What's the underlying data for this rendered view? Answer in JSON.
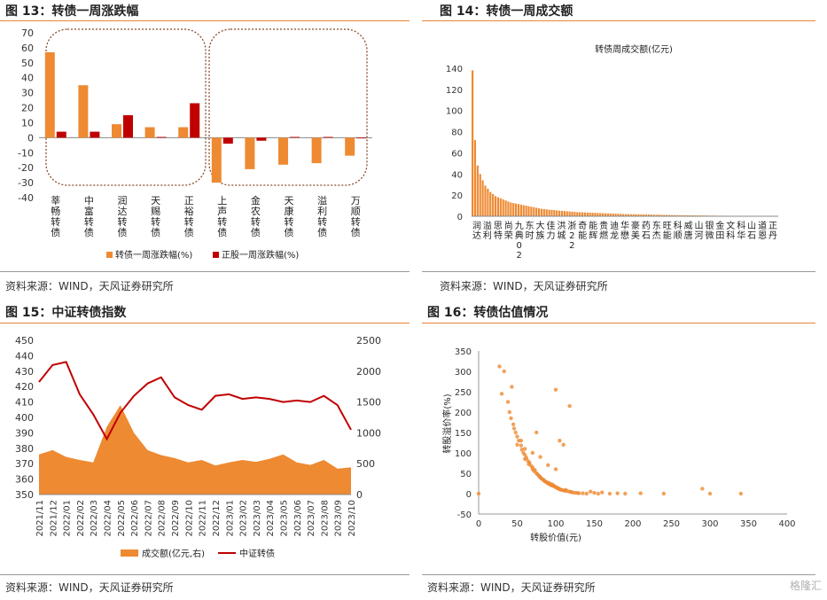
{
  "figures": {
    "fig13": {
      "title": "图 13：转债一周涨跌幅",
      "source": "资料来源：WIND，天风证券研究所"
    },
    "fig14": {
      "title": "图 14：转债一周成交额",
      "source": "资料来源：WIND，天风证券研究所"
    },
    "fig15": {
      "title": "图 15：中证转债指数",
      "source": "资料来源：WIND，天风证券研究所"
    },
    "fig16": {
      "title": "图 16：转债估值情况",
      "source": "资料来源：WIND，天风证券研究所"
    }
  },
  "watermark": "格隆汇",
  "colors": {
    "orange": "#ee8a32",
    "red": "#c00000",
    "rule": "#e8853a"
  },
  "chart_data": [
    {
      "id": "fig13",
      "type": "bar",
      "categories": [
        "莘畅转债",
        "中富转债",
        "润达转债",
        "天赐转债",
        "正裕转债",
        "上声转债",
        "金农转债",
        "天康转债",
        "溢利转债",
        "万顺转债"
      ],
      "series": [
        {
          "name": "转债一周涨跌幅(%)",
          "color": "#ee8a32",
          "values": [
            57,
            35,
            9,
            7,
            7,
            -30,
            -21,
            -18,
            -17,
            -12
          ]
        },
        {
          "name": "正股一周涨跌幅(%)",
          "color": "#c00000",
          "values": [
            4,
            4,
            15,
            0.5,
            23,
            -4,
            -2,
            0.5,
            0.5,
            0
          ]
        }
      ],
      "ylim": [
        -40,
        70
      ],
      "yticks": [
        -40,
        -30,
        -20,
        -10,
        0,
        10,
        20,
        30,
        40,
        50,
        60,
        70
      ],
      "legend": "bottom"
    },
    {
      "id": "fig14",
      "type": "bar",
      "title": "转债周成交额(亿元)",
      "ylim": [
        0,
        140
      ],
      "yticks": [
        0,
        20,
        40,
        60,
        80,
        100,
        120,
        140
      ],
      "shown_labels": [
        "润达",
        "溢利",
        "思特",
        "尚荣",
        "九典02",
        "东时",
        "大族",
        "佳力",
        "洪城",
        "浙22",
        "奇能",
        "能辉",
        "贵燃",
        "迪龙",
        "华懋",
        "豪美",
        "药石",
        "东杰",
        "旺能",
        "科顺",
        "威唐",
        "山河",
        "银微",
        "金田",
        "文科",
        "科华",
        "山石",
        "道恩",
        "正丹"
      ],
      "values_sorted_desc": [
        138,
        72,
        48,
        40,
        34,
        29,
        26,
        23,
        21,
        19,
        18,
        17,
        16,
        15,
        14,
        13,
        12.5,
        12,
        11.5,
        11,
        10.5,
        10,
        9.5,
        9,
        8.5,
        8,
        7.5,
        7,
        6.8,
        6.5,
        6.2,
        6,
        5.8,
        5.5,
        5.3,
        5.1,
        4.9,
        4.7,
        4.5,
        4.3,
        4.1,
        3.9,
        3.8,
        3.7,
        3.6,
        3.5,
        3.4,
        3.3,
        3.2,
        3.1,
        3.0,
        2.9,
        2.8,
        2.7,
        2.6,
        2.5,
        2.4,
        2.3,
        2.2,
        2.1,
        2.0,
        2.0,
        1.9,
        1.9,
        1.8,
        1.8,
        1.7,
        1.7,
        1.6,
        1.6,
        1.5,
        1.5,
        1.4,
        1.4,
        1.3,
        1.3,
        1.2,
        1.2,
        1.1,
        1.1,
        1.0,
        1.0,
        1.0,
        0.9,
        0.9,
        0.9,
        0.8,
        0.8,
        0.8,
        0.7,
        0.7,
        0.7,
        0.6,
        0.6,
        0.6,
        0.5,
        0.5,
        0.5,
        0.5,
        0.4,
        0.4,
        0.4,
        0.4,
        0.3,
        0.3,
        0.3,
        0.3,
        0.3,
        0.2,
        0.2,
        0.2,
        0.2,
        0.2,
        0.2,
        0.1,
        0.1,
        0.1,
        0.1,
        0.1,
        0.1
      ],
      "color": "#ee8a32"
    },
    {
      "id": "fig15",
      "type": "line",
      "x": [
        "2021/11",
        "2021/12",
        "2022/01",
        "2022/02",
        "2022/03",
        "2022/04",
        "2022/05",
        "2022/06",
        "2022/07",
        "2022/08",
        "2022/09",
        "2022/10",
        "2022/11",
        "2022/12",
        "2023/01",
        "2023/02",
        "2023/03",
        "2023/04",
        "2023/05",
        "2023/06",
        "2023/07",
        "2023/08",
        "2023/09",
        "2023/10"
      ],
      "series": [
        {
          "name": "成交额(亿元,右)",
          "type": "area",
          "axis": "right",
          "color": "#ee8a32",
          "values": [
            650,
            720,
            610,
            560,
            520,
            1100,
            1450,
            1000,
            720,
            640,
            590,
            520,
            560,
            470,
            520,
            560,
            530,
            580,
            650,
            520,
            480,
            560,
            420,
            440
          ]
        },
        {
          "name": "中证转债",
          "type": "line",
          "axis": "left",
          "color": "#c00000",
          "values": [
            423,
            434,
            436,
            415,
            402,
            386,
            403,
            414,
            422,
            426,
            413,
            408,
            405,
            414,
            415,
            412,
            413,
            412,
            410,
            411,
            410,
            414,
            408,
            392
          ]
        }
      ],
      "ylim_left": [
        350,
        450
      ],
      "yticks_left": [
        350,
        360,
        370,
        380,
        390,
        400,
        410,
        420,
        430,
        440,
        450
      ],
      "ylim_right": [
        0,
        2500
      ],
      "yticks_right": [
        0,
        500,
        1000,
        1500,
        2000,
        2500
      ],
      "legend": "bottom"
    },
    {
      "id": "fig16",
      "type": "scatter",
      "xlabel": "转股价值(元)",
      "ylabel": "转股溢价率(%)",
      "xlim": [
        0,
        400
      ],
      "ylim": [
        -50,
        350
      ],
      "xticks": [
        0,
        50,
        100,
        150,
        200,
        250,
        300,
        350,
        400
      ],
      "yticks": [
        -50,
        0,
        50,
        100,
        150,
        200,
        250,
        300,
        350
      ],
      "color": "#ee8a32",
      "points": [
        [
          0,
          0
        ],
        [
          27,
          312
        ],
        [
          30,
          245
        ],
        [
          33,
          300
        ],
        [
          38,
          225
        ],
        [
          40,
          200
        ],
        [
          42,
          185
        ],
        [
          43,
          262
        ],
        [
          45,
          170
        ],
        [
          46,
          160
        ],
        [
          48,
          150
        ],
        [
          50,
          140
        ],
        [
          50,
          120
        ],
        [
          52,
          130
        ],
        [
          55,
          118
        ],
        [
          56,
          108
        ],
        [
          58,
          100
        ],
        [
          60,
          95
        ],
        [
          60,
          85
        ],
        [
          62,
          88
        ],
        [
          64,
          80
        ],
        [
          65,
          72
        ],
        [
          66,
          76
        ],
        [
          68,
          68
        ],
        [
          70,
          60
        ],
        [
          70,
          64
        ],
        [
          72,
          55
        ],
        [
          73,
          58
        ],
        [
          75,
          50
        ],
        [
          76,
          48
        ],
        [
          78,
          44
        ],
        [
          79,
          42
        ],
        [
          80,
          40
        ],
        [
          81,
          38
        ],
        [
          82,
          36
        ],
        [
          84,
          34
        ],
        [
          85,
          32
        ],
        [
          86,
          30
        ],
        [
          88,
          28
        ],
        [
          89,
          27
        ],
        [
          90,
          25
        ],
        [
          91,
          26
        ],
        [
          92,
          23
        ],
        [
          93,
          24
        ],
        [
          94,
          21
        ],
        [
          95,
          20
        ],
        [
          96,
          22
        ],
        [
          97,
          19
        ],
        [
          98,
          18
        ],
        [
          99,
          17
        ],
        [
          100,
          16
        ],
        [
          101,
          15
        ],
        [
          102,
          14
        ],
        [
          103,
          13
        ],
        [
          104,
          12
        ],
        [
          105,
          11
        ],
        [
          106,
          10
        ],
        [
          108,
          9
        ],
        [
          110,
          8
        ],
        [
          112,
          7
        ],
        [
          113,
          9
        ],
        [
          115,
          6
        ],
        [
          118,
          5
        ],
        [
          120,
          4
        ],
        [
          122,
          3
        ],
        [
          125,
          2
        ],
        [
          128,
          2
        ],
        [
          130,
          1
        ],
        [
          135,
          1
        ],
        [
          140,
          0
        ],
        [
          145,
          5
        ],
        [
          150,
          2
        ],
        [
          155,
          0
        ],
        [
          160,
          3
        ],
        [
          170,
          0
        ],
        [
          180,
          1
        ],
        [
          190,
          0
        ],
        [
          210,
          1
        ],
        [
          240,
          0
        ],
        [
          290,
          12
        ],
        [
          300,
          0
        ],
        [
          340,
          0
        ],
        [
          100,
          255
        ],
        [
          118,
          215
        ],
        [
          75,
          150
        ],
        [
          105,
          130
        ],
        [
          110,
          120
        ],
        [
          100,
          60
        ],
        [
          90,
          70
        ],
        [
          80,
          90
        ],
        [
          70,
          100
        ],
        [
          60,
          110
        ],
        [
          55,
          130
        ]
      ]
    }
  ]
}
